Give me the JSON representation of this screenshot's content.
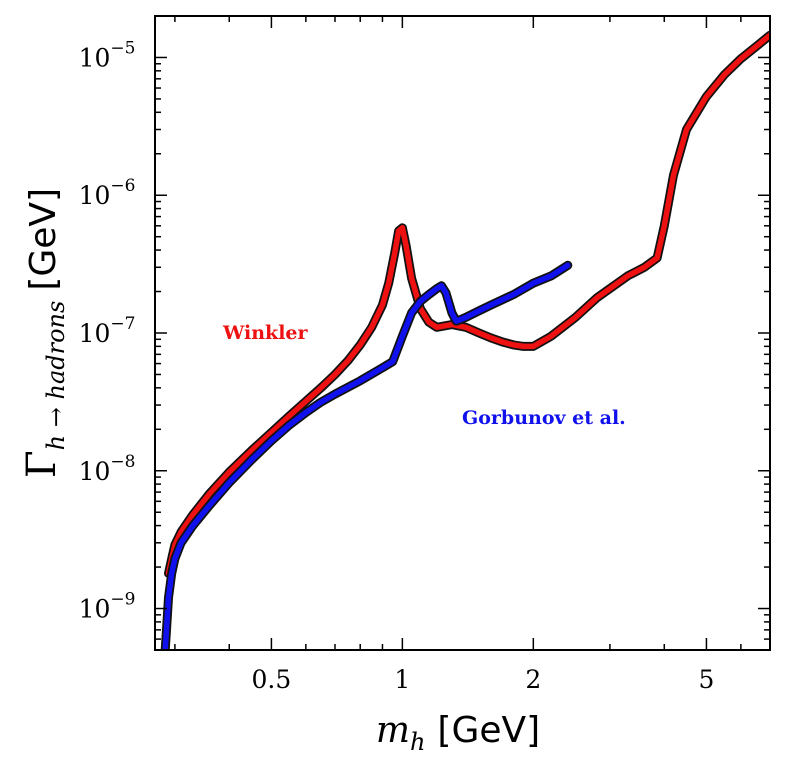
{
  "chart_data": {
    "type": "line",
    "xscale": "log",
    "yscale": "log",
    "xlim": [
      0.27,
      7.0
    ],
    "ylim": [
      5e-10,
      2e-05
    ],
    "xlabel": {
      "math": "m",
      "sub": "h",
      "unit": "[GeV]"
    },
    "ylabel": {
      "math": "Γ",
      "sub": "h → hadrons",
      "unit": "[GeV]"
    },
    "x_ticks": [
      {
        "value": 0.5,
        "label": "0.5"
      },
      {
        "value": 1,
        "label": "1"
      },
      {
        "value": 2,
        "label": "2"
      },
      {
        "value": 5,
        "label": "5"
      }
    ],
    "y_ticks": [
      {
        "value": 1e-09,
        "base": "10",
        "exp": "−9"
      },
      {
        "value": 1e-08,
        "base": "10",
        "exp": "−8"
      },
      {
        "value": 1e-07,
        "base": "10",
        "exp": "−7"
      },
      {
        "value": 1e-06,
        "base": "10",
        "exp": "−6"
      },
      {
        "value": 1e-05,
        "base": "10",
        "exp": "−5"
      }
    ],
    "series": [
      {
        "name": "Winkler",
        "color": "#ee1111",
        "x": [
          0.29,
          0.295,
          0.3,
          0.31,
          0.33,
          0.36,
          0.4,
          0.45,
          0.5,
          0.55,
          0.6,
          0.65,
          0.7,
          0.75,
          0.8,
          0.85,
          0.9,
          0.93,
          0.96,
          0.98,
          1.0,
          1.02,
          1.05,
          1.1,
          1.15,
          1.2,
          1.3,
          1.4,
          1.5,
          1.6,
          1.7,
          1.8,
          1.9,
          2.0,
          2.2,
          2.5,
          2.8,
          3.0,
          3.3,
          3.6,
          3.85,
          4.0,
          4.2,
          4.5,
          5.0,
          5.5,
          6.0,
          6.5,
          7.0
        ],
        "y": [
          1.8e-09,
          2.3e-09,
          2.9e-09,
          3.6e-09,
          4.8e-09,
          6.8e-09,
          9.8e-09,
          1.4e-08,
          1.9e-08,
          2.5e-08,
          3.2e-08,
          4e-08,
          5e-08,
          6.3e-08,
          8.2e-08,
          1.1e-07,
          1.6e-07,
          2.3e-07,
          3.8e-07,
          5.5e-07,
          5.8e-07,
          4.3e-07,
          2.5e-07,
          1.5e-07,
          1.2e-07,
          1.1e-07,
          1.15e-07,
          1.1e-07,
          1e-07,
          9.2e-08,
          8.6e-08,
          8.2e-08,
          8e-08,
          8e-08,
          9.5e-08,
          1.3e-07,
          1.8e-07,
          2.1e-07,
          2.6e-07,
          3e-07,
          3.5e-07,
          6e-07,
          1.4e-06,
          3e-06,
          5.2e-06,
          7.5e-06,
          9.8e-06,
          1.2e-05,
          1.45e-05
        ]
      },
      {
        "name": "Gorbunov et al.",
        "color": "#1111ee",
        "x": [
          0.285,
          0.287,
          0.29,
          0.295,
          0.3,
          0.31,
          0.33,
          0.36,
          0.4,
          0.45,
          0.5,
          0.55,
          0.6,
          0.65,
          0.7,
          0.8,
          0.9,
          0.95,
          1.0,
          1.05,
          1.1,
          1.15,
          1.2,
          1.23,
          1.26,
          1.3,
          1.33,
          1.36,
          1.4,
          1.5,
          1.6,
          1.8,
          2.0,
          2.2,
          2.4
        ],
        "y": [
          5e-10,
          7e-10,
          1.2e-09,
          1.8e-09,
          2.3e-09,
          3e-09,
          4e-09,
          5.6e-09,
          8.2e-09,
          1.2e-08,
          1.65e-08,
          2.15e-08,
          2.65e-08,
          3.15e-08,
          3.6e-08,
          4.5e-08,
          5.6e-08,
          6.2e-08,
          9.5e-08,
          1.4e-07,
          1.7e-07,
          1.9e-07,
          2.1e-07,
          2.2e-07,
          1.95e-07,
          1.4e-07,
          1.22e-07,
          1.25e-07,
          1.3e-07,
          1.45e-07,
          1.6e-07,
          1.9e-07,
          2.3e-07,
          2.6e-07,
          3.1e-07
        ]
      }
    ],
    "annotations": [
      {
        "text": "Winkler",
        "color": "#ee1111"
      },
      {
        "text": "Gorbunov et al.",
        "color": "#1111ee"
      }
    ],
    "grid": false,
    "legend": "none"
  }
}
